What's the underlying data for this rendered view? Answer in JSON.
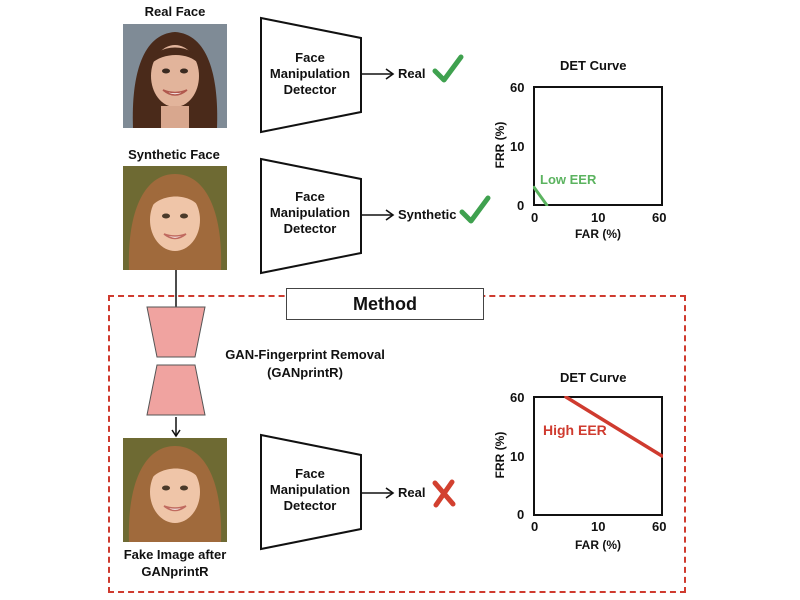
{
  "real_face": {
    "label": "Real Face"
  },
  "synthetic_face": {
    "label": "Synthetic Face"
  },
  "fake_face": {
    "label_line1": "Fake Image after",
    "label_line2": "GANprintR"
  },
  "detector": {
    "line1": "Face",
    "line2": "Manipulation",
    "line3": "Detector"
  },
  "outputs": {
    "real_top": "Real",
    "synthetic": "Synthetic",
    "real_bottom": "Real"
  },
  "method": {
    "title": "Method",
    "removal_line1": "GAN-Fingerprint Removal",
    "removal_line2": "(GANprintR)"
  },
  "colors": {
    "check": "#3fa14f",
    "cross": "#d2402f",
    "dashed_border": "#cf3b2f",
    "hourglass": "#f0a3a0",
    "low_eer": "#5bb35f",
    "high_eer": "#cf3b2f"
  },
  "icons": [
    "check-icon",
    "cross-icon",
    "right-arrow-icon",
    "down-arrow-icon"
  ],
  "chart_data": [
    {
      "type": "line",
      "title": "DET Curve",
      "xlabel": "FAR (%)",
      "ylabel": "FRR (%)",
      "x_ticks": [
        "0",
        "10",
        "60"
      ],
      "y_ticks": [
        "60",
        "10",
        "0"
      ],
      "annotation": "Low EER",
      "series": [
        {
          "x": [
            0,
            2
          ],
          "y": [
            3,
            0
          ]
        }
      ]
    },
    {
      "type": "line",
      "title": "DET Curve",
      "xlabel": "FAR (%)",
      "ylabel": "FRR (%)",
      "x_ticks": [
        "0",
        "10",
        "60"
      ],
      "y_ticks": [
        "60",
        "10",
        "0"
      ],
      "annotation": "High EER",
      "series": [
        {
          "x": [
            5,
            60
          ],
          "y": [
            60,
            10
          ]
        }
      ]
    }
  ]
}
